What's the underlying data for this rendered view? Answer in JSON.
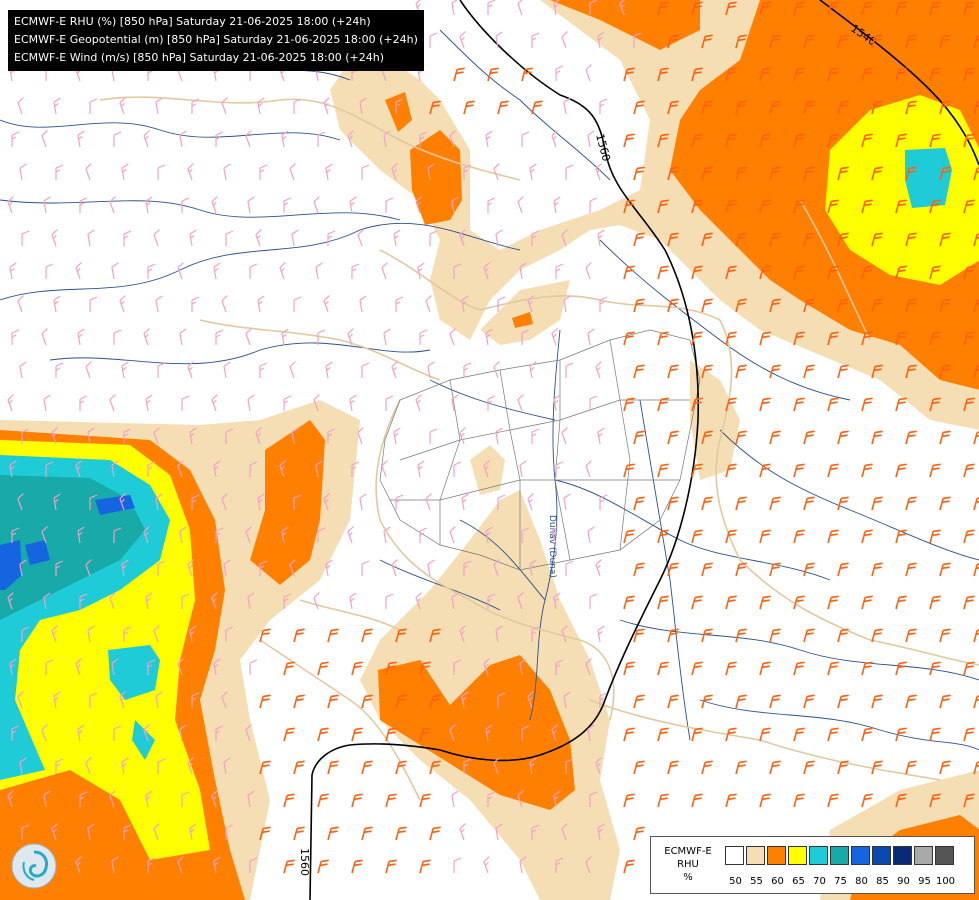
{
  "title": {
    "lines": [
      "ECMWF-E RHU (%) [850 hPa] Saturday 21-06-2025 18:00 (+24h)",
      "ECMWF-E Geopotential (m) [850 hPa] Saturday 21-06-2025 18:00 (+24h)",
      "ECMWF-E Wind (m/s) [850 hPa] Saturday 21-06-2025 18:00 (+24h)"
    ]
  },
  "contours": {
    "labels": [
      "1540",
      "1560",
      "1560"
    ]
  },
  "river_label": "Dunav (Duna)",
  "legend": {
    "label_lines": [
      "ECMWF-E",
      "RHU",
      "%"
    ],
    "colors": [
      "#ffffff",
      "#f5deb3",
      "#ff8000",
      "#ffff00",
      "#1ecbd6",
      "#18a9a9",
      "#1565e0",
      "#0a4ab0",
      "#0a2a78",
      "#a9a9a9",
      "#555555"
    ],
    "ticks": [
      "50",
      "55",
      "60",
      "65",
      "70",
      "75",
      "80",
      "85",
      "90",
      "95",
      "100"
    ]
  },
  "colors": {
    "rh_50": "#f5deb3",
    "rh_60": "#ff8000",
    "rh_65": "#ffff00",
    "rh_70": "#1ecbd6",
    "rh_75": "#18a9a9",
    "rh_80": "#1565e0",
    "wind_low": "#f2a0c8",
    "wind_high": "#ff6010",
    "rivers": "#2c4f8a",
    "borders": "#e0c8a0",
    "regions": "#777777"
  }
}
